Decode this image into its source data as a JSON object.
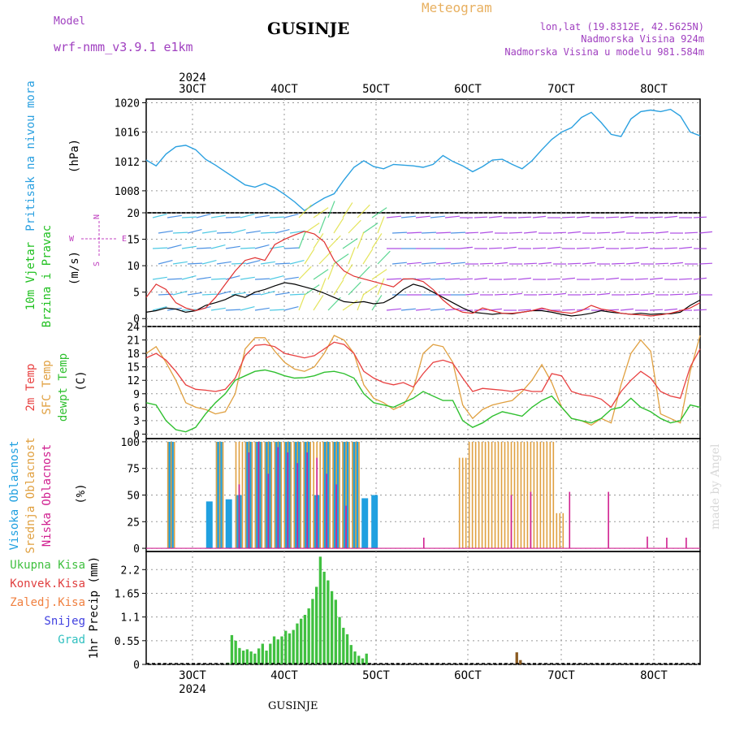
{
  "header": {
    "model_label": "Model",
    "model_name": "wrf-nmm_v3.9.1 e1km",
    "station": "GUSINJE",
    "meteogram": "Meteogram",
    "lonlat": "lon,lat (19.8312E, 42.5625N)",
    "elevation": "Nadmorska Visina 924m",
    "model_elevation": "Nadmorska Visina u modelu 981.584m",
    "watermark": "made by Angel",
    "footer_station": "GUSINJE"
  },
  "colors": {
    "pressure": "#2aa0e0",
    "wind_black": "#000000",
    "wind_red": "#e03030",
    "temp2m": "#e84040",
    "sfc": "#e0a040",
    "dewpt": "#30c030",
    "high_cloud": "#20a0e0",
    "mid_cloud": "#e0a040",
    "low_cloud": "#d02090",
    "precip": "#40c040",
    "conv": "#e04040"
  },
  "chart_data": [
    {
      "type": "line",
      "panel": "pressure",
      "x_labels_top": [
        "3OCT",
        "4OCT",
        "5OCT",
        "6OCT",
        "7OCT",
        "8OCT"
      ],
      "year_top": "2024",
      "ylabel_main": "Pritisak na nivou mora",
      "ylabel_unit": "(hPa)",
      "yticks": [
        "1008",
        "1012",
        "1016",
        "1020"
      ],
      "ylim": [
        1005,
        1020.5
      ],
      "series": [
        {
          "values": [
            1012.2,
            1011.4,
            1013.0,
            1014.0,
            1014.2,
            1013.6,
            1012.3,
            1011.5,
            1010.6,
            1009.7,
            1008.8,
            1008.5,
            1009.0,
            1008.4,
            1007.5,
            1006.5,
            1005.3,
            1006.2,
            1007.0,
            1007.6,
            1009.5,
            1011.2,
            1012.1,
            1011.3,
            1011.0,
            1011.6,
            1011.5,
            1011.4,
            1011.2,
            1011.6,
            1012.8,
            1012.0,
            1011.4,
            1010.6,
            1011.3,
            1012.2,
            1012.3,
            1011.6,
            1011.0,
            1012.1,
            1013.6,
            1015.0,
            1016.0,
            1016.6,
            1018.0,
            1018.7,
            1017.3,
            1015.7,
            1015.4,
            1017.8,
            1018.8,
            1019.0,
            1018.8,
            1019.1,
            1018.2,
            1016.0,
            1015.5
          ]
        }
      ]
    },
    {
      "type": "line",
      "panel": "wind",
      "ylabel_main": "10m Vjetar",
      "ylabel_sub": "Brzina i Pravac",
      "ylabel_unit": "(m/s)",
      "compass_n": "N",
      "compass_w": "W",
      "compass_e": "E",
      "compass_s": "S",
      "yticks": [
        "0",
        "5",
        "10",
        "15",
        "20"
      ],
      "ylim": [
        -1.5,
        20
      ],
      "series": [
        {
          "values": [
            1.2,
            1.5,
            2.0,
            1.8,
            1.2,
            1.5,
            2.5,
            3.0,
            3.6,
            4.5,
            4.0,
            5.0,
            5.5,
            6.2,
            6.8,
            6.5,
            6.0,
            5.5,
            4.8,
            4.0,
            3.2,
            3.0,
            3.2,
            2.8,
            3.0,
            4.0,
            5.5,
            6.5,
            6.0,
            5.0,
            4.0,
            3.0,
            2.0,
            1.2,
            1.0,
            0.8,
            1.0,
            0.9,
            1.2,
            1.5,
            1.5,
            1.2,
            0.8,
            0.5,
            0.7,
            1.0,
            1.5,
            1.2,
            1.0,
            0.8,
            1.0,
            0.8,
            0.9,
            0.9,
            1.2,
            2.5,
            3.5
          ]
        },
        {
          "values": [
            4.0,
            6.5,
            5.5,
            3.0,
            2.0,
            1.5,
            2.0,
            4.0,
            6.5,
            9.0,
            11.0,
            11.5,
            11.0,
            14.0,
            15.0,
            15.8,
            16.5,
            16.0,
            14.5,
            11.0,
            9.0,
            8.0,
            7.5,
            7.0,
            6.5,
            6.0,
            7.5,
            7.5,
            7.0,
            5.5,
            3.5,
            2.0,
            1.2,
            1.0,
            2.0,
            1.5,
            1.0,
            1.0,
            1.2,
            1.5,
            2.0,
            1.5,
            1.2,
            1.0,
            1.5,
            2.5,
            1.8,
            1.5,
            1.0,
            0.8,
            0.7,
            0.5,
            0.7,
            1.0,
            1.5,
            2.0,
            3.0
          ]
        }
      ]
    },
    {
      "type": "line",
      "panel": "temperature",
      "ylabel_2m": "2m Temp",
      "ylabel_sfc": "SFC Temp",
      "ylabel_dew": "dewpt Temp",
      "ylabel_unit": "(C)",
      "yticks": [
        "0",
        "3",
        "6",
        "9",
        "12",
        "15",
        "18",
        "21",
        "24"
      ],
      "ylim": [
        -1,
        24
      ],
      "series": [
        {
          "values": [
            17.0,
            18.0,
            16.5,
            14.0,
            11.0,
            10.0,
            9.8,
            9.5,
            10.0,
            12.5,
            17.5,
            19.8,
            20.0,
            19.5,
            18.0,
            17.5,
            17.0,
            17.5,
            19.0,
            20.5,
            20.0,
            18.0,
            14.0,
            12.5,
            11.5,
            11.0,
            11.5,
            10.5,
            13.5,
            16.0,
            16.5,
            15.8,
            12.5,
            9.5,
            10.2,
            10.0,
            9.8,
            9.5,
            10.0,
            9.5,
            9.5,
            13.5,
            13.0,
            9.5,
            8.8,
            8.5,
            7.8,
            6.0,
            9.5,
            12.0,
            14.0,
            12.5,
            9.5,
            8.5,
            8.0,
            15.0,
            19.0
          ]
        },
        {
          "values": [
            18.0,
            19.5,
            16.0,
            12.0,
            7.0,
            6.0,
            5.5,
            4.5,
            5.0,
            9.0,
            19.0,
            21.5,
            21.5,
            18.5,
            16.0,
            14.5,
            14.0,
            15.0,
            18.0,
            22.0,
            21.0,
            18.0,
            11.0,
            8.0,
            7.0,
            5.5,
            6.5,
            10.0,
            18.0,
            20.0,
            19.5,
            16.0,
            6.5,
            3.5,
            5.5,
            6.5,
            7.0,
            7.5,
            9.5,
            12.0,
            15.5,
            11.5,
            6.0,
            3.5,
            3.0,
            2.0,
            3.5,
            2.5,
            11.0,
            18.0,
            21.0,
            18.5,
            4.5,
            3.5,
            2.5,
            14.0,
            22.0
          ]
        },
        {
          "values": [
            7.0,
            6.5,
            3.0,
            1.0,
            0.5,
            1.5,
            4.5,
            7.0,
            9.0,
            12.0,
            13.0,
            14.0,
            14.3,
            13.8,
            13.0,
            12.5,
            12.6,
            13.0,
            13.8,
            14.0,
            13.5,
            12.5,
            9.0,
            7.0,
            6.5,
            6.0,
            7.0,
            8.0,
            9.5,
            8.5,
            7.5,
            7.5,
            3.0,
            1.5,
            2.5,
            4.0,
            5.0,
            4.5,
            4.0,
            6.0,
            7.5,
            8.5,
            6.0,
            3.5,
            3.0,
            2.5,
            3.5,
            5.5,
            6.0,
            8.0,
            6.0,
            5.0,
            3.5,
            2.5,
            3.0,
            6.5,
            6.0
          ]
        }
      ]
    },
    {
      "type": "bar",
      "panel": "clouds",
      "ylabel_high": "Visoka Oblacnost",
      "ylabel_mid": "Srednja Oblacnost",
      "ylabel_low": "Niska Oblacnost",
      "ylabel_unit": "(%)",
      "yticks": [
        "0",
        "25",
        "50",
        "75",
        "100"
      ],
      "ylim": [
        -3,
        103
      ],
      "series": [
        {
          "name": "high",
          "values": [
            0,
            0,
            100,
            0,
            0,
            0,
            44,
            100,
            46,
            50,
            100,
            100,
            100,
            100,
            100,
            100,
            100,
            50,
            100,
            100,
            100,
            100,
            47,
            50,
            0,
            0,
            0,
            0,
            0,
            0,
            0,
            0,
            0,
            0,
            0,
            0,
            0,
            0,
            0,
            0,
            0,
            0,
            0,
            0,
            0,
            0,
            0,
            0,
            0,
            0,
            0,
            0,
            0,
            0,
            0,
            0,
            0
          ]
        },
        {
          "name": "mid",
          "values": [
            0,
            0,
            100,
            0,
            0,
            0,
            0,
            100,
            0,
            100,
            100,
            100,
            100,
            100,
            100,
            100,
            100,
            100,
            100,
            100,
            100,
            100,
            0,
            0,
            0,
            0,
            0,
            0,
            0,
            0,
            0,
            0,
            85,
            100,
            100,
            100,
            100,
            100,
            100,
            100,
            100,
            100,
            33,
            0,
            0,
            0,
            0,
            0,
            0,
            0,
            0,
            0,
            0,
            0,
            0,
            0,
            0
          ]
        },
        {
          "name": "low",
          "values": [
            0,
            0,
            0,
            0,
            0,
            0,
            0,
            0,
            0,
            60,
            90,
            100,
            70,
            95,
            90,
            80,
            90,
            85,
            70,
            60,
            40,
            0,
            0,
            0,
            0,
            0,
            0,
            0,
            10,
            0,
            0,
            0,
            0,
            0,
            0,
            0,
            0,
            50,
            0,
            53,
            0,
            0,
            0,
            53,
            0,
            0,
            0,
            53,
            0,
            0,
            0,
            11,
            0,
            10,
            0,
            10,
            0
          ]
        }
      ]
    },
    {
      "type": "bar",
      "panel": "precipitation",
      "legend": [
        "Ukupna Kisa",
        "Konvek.Kisa",
        "Zaledj.Kisa",
        "Snijeg",
        "Grad"
      ],
      "ylabel_unit": "1hr Precip (mm)",
      "x_labels_bottom": [
        "3OCT",
        "4OCT",
        "5OCT",
        "6OCT",
        "7OCT",
        "8OCT"
      ],
      "year_bottom": "2024",
      "yticks": [
        "0",
        "0.55",
        "1.1",
        "1.65",
        "2.2"
      ],
      "ylim": [
        0,
        2.62
      ],
      "x_start_day": 2.47,
      "x_step_days": 0.0417,
      "x_span_days": [
        2.47,
        8.5
      ],
      "total": [
        0.04,
        0.68,
        0.55,
        0.38,
        0.32,
        0.35,
        0.3,
        0.25,
        0.37,
        0.48,
        0.32,
        0.48,
        0.65,
        0.58,
        0.65,
        0.78,
        0.72,
        0.8,
        0.95,
        1.06,
        1.15,
        1.3,
        1.52,
        1.8,
        2.5,
        2.15,
        1.95,
        1.7,
        1.5,
        1.1,
        0.85,
        0.7,
        0.45,
        0.3,
        0.2,
        0.14,
        0.25
      ],
      "total_start_day": 3.37,
      "brown_bars": [
        [
          6.5,
          0.28
        ],
        [
          6.54,
          0.1
        ]
      ]
    }
  ]
}
